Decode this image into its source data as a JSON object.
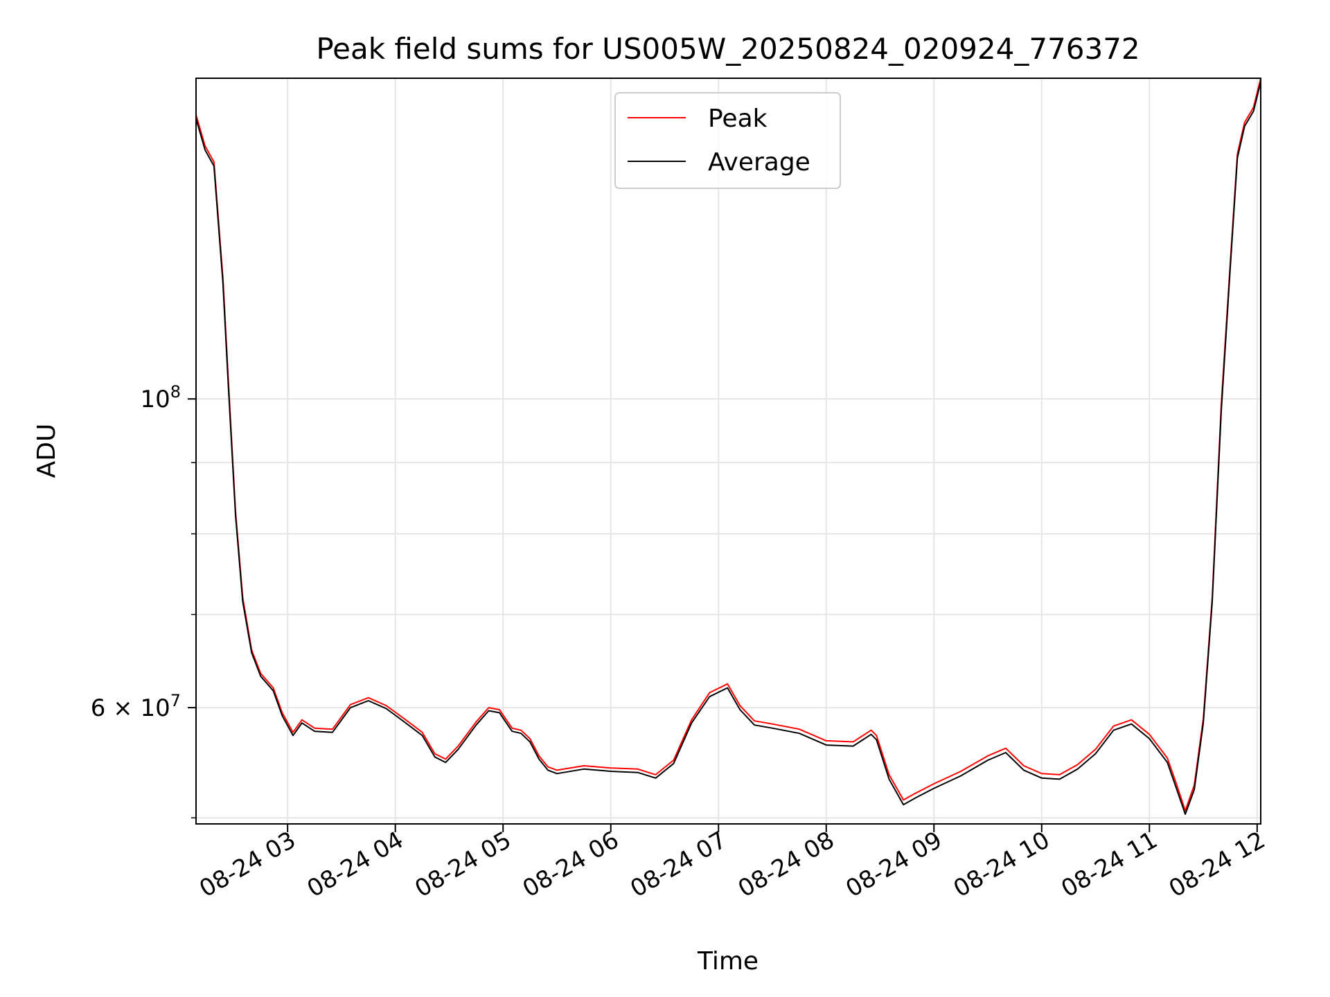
{
  "chart_data": {
    "type": "line",
    "title": "Peak field sums for US005W_20250824_020924_776372",
    "xlabel": "Time",
    "ylabel": "ADU",
    "y_scale": "log",
    "ylim": [
      49500000,
      170000000
    ],
    "xlim": [
      "2025-08-24 02:09",
      "2025-08-24 12:02"
    ],
    "x_ticks": [
      {
        "t": "2025-08-24 03:00",
        "label": "08-24 03"
      },
      {
        "t": "2025-08-24 04:00",
        "label": "08-24 04"
      },
      {
        "t": "2025-08-24 05:00",
        "label": "08-24 05"
      },
      {
        "t": "2025-08-24 06:00",
        "label": "08-24 06"
      },
      {
        "t": "2025-08-24 07:00",
        "label": "08-24 07"
      },
      {
        "t": "2025-08-24 08:00",
        "label": "08-24 08"
      },
      {
        "t": "2025-08-24 09:00",
        "label": "08-24 09"
      },
      {
        "t": "2025-08-24 10:00",
        "label": "08-24 10"
      },
      {
        "t": "2025-08-24 11:00",
        "label": "08-24 11"
      },
      {
        "t": "2025-08-24 12:00",
        "label": "08-24 12"
      }
    ],
    "y_major_ticks": [
      {
        "value": 100000000,
        "base": "10",
        "exp": "8"
      },
      {
        "value": 60000000,
        "mant": "6",
        "base": "10",
        "exp": "7"
      }
    ],
    "y_minor_ticks": [
      50000000,
      70000000,
      80000000,
      90000000
    ],
    "grid": true,
    "legend_position": "top-center",
    "series": [
      {
        "name": "Peak",
        "color": "#ff0000",
        "points": [
          [
            "2025-08-24 02:09",
            160000000
          ],
          [
            "2025-08-24 02:14",
            152000000
          ],
          [
            "2025-08-24 02:19",
            148000000
          ],
          [
            "2025-08-24 02:24",
            122000000
          ],
          [
            "2025-08-24 02:27",
            103000000
          ],
          [
            "2025-08-24 02:31",
            83000000
          ],
          [
            "2025-08-24 02:35",
            72000000
          ],
          [
            "2025-08-24 02:40",
            66000000
          ],
          [
            "2025-08-24 02:45",
            63500000
          ],
          [
            "2025-08-24 02:52",
            62000000
          ],
          [
            "2025-08-24 02:57",
            59500000
          ],
          [
            "2025-08-24 03:03",
            57600000
          ],
          [
            "2025-08-24 03:08",
            58800000
          ],
          [
            "2025-08-24 03:15",
            58000000
          ],
          [
            "2025-08-24 03:25",
            57900000
          ],
          [
            "2025-08-24 03:35",
            60300000
          ],
          [
            "2025-08-24 03:45",
            61000000
          ],
          [
            "2025-08-24 03:55",
            60200000
          ],
          [
            "2025-08-24 04:05",
            58900000
          ],
          [
            "2025-08-24 04:15",
            57600000
          ],
          [
            "2025-08-24 04:22",
            55600000
          ],
          [
            "2025-08-24 04:28",
            55100000
          ],
          [
            "2025-08-24 04:35",
            56300000
          ],
          [
            "2025-08-24 04:45",
            58600000
          ],
          [
            "2025-08-24 04:52",
            60000000
          ],
          [
            "2025-08-24 04:58",
            59800000
          ],
          [
            "2025-08-24 05:05",
            58000000
          ],
          [
            "2025-08-24 05:10",
            57800000
          ],
          [
            "2025-08-24 05:15",
            57000000
          ],
          [
            "2025-08-24 05:20",
            55400000
          ],
          [
            "2025-08-24 05:25",
            54400000
          ],
          [
            "2025-08-24 05:30",
            54100000
          ],
          [
            "2025-08-24 05:45",
            54500000
          ],
          [
            "2025-08-24 06:00",
            54300000
          ],
          [
            "2025-08-24 06:15",
            54200000
          ],
          [
            "2025-08-24 06:25",
            53700000
          ],
          [
            "2025-08-24 06:35",
            55000000
          ],
          [
            "2025-08-24 06:45",
            58800000
          ],
          [
            "2025-08-24 06:55",
            61500000
          ],
          [
            "2025-08-24 07:05",
            62400000
          ],
          [
            "2025-08-24 07:12",
            60200000
          ],
          [
            "2025-08-24 07:20",
            58700000
          ],
          [
            "2025-08-24 07:30",
            58400000
          ],
          [
            "2025-08-24 07:45",
            57900000
          ],
          [
            "2025-08-24 08:00",
            56800000
          ],
          [
            "2025-08-24 08:15",
            56700000
          ],
          [
            "2025-08-24 08:25",
            57800000
          ],
          [
            "2025-08-24 08:28",
            57300000
          ],
          [
            "2025-08-24 08:35",
            53700000
          ],
          [
            "2025-08-24 08:43",
            51500000
          ],
          [
            "2025-08-24 08:50",
            52100000
          ],
          [
            "2025-08-24 09:00",
            52900000
          ],
          [
            "2025-08-24 09:15",
            54000000
          ],
          [
            "2025-08-24 09:30",
            55400000
          ],
          [
            "2025-08-24 09:40",
            56100000
          ],
          [
            "2025-08-24 09:50",
            54500000
          ],
          [
            "2025-08-24 10:00",
            53800000
          ],
          [
            "2025-08-24 10:10",
            53700000
          ],
          [
            "2025-08-24 10:20",
            54600000
          ],
          [
            "2025-08-24 10:30",
            56000000
          ],
          [
            "2025-08-24 10:40",
            58200000
          ],
          [
            "2025-08-24 10:50",
            58800000
          ],
          [
            "2025-08-24 11:00",
            57400000
          ],
          [
            "2025-08-24 11:10",
            55200000
          ],
          [
            "2025-08-24 11:15",
            52900000
          ],
          [
            "2025-08-24 11:20",
            50600000
          ],
          [
            "2025-08-24 11:25",
            52800000
          ],
          [
            "2025-08-24 11:30",
            58900000
          ],
          [
            "2025-08-24 11:35",
            72000000
          ],
          [
            "2025-08-24 11:40",
            99000000
          ],
          [
            "2025-08-24 11:45",
            125000000
          ],
          [
            "2025-08-24 11:49",
            150000000
          ],
          [
            "2025-08-24 11:53",
            158000000
          ],
          [
            "2025-08-24 11:58",
            162000000
          ],
          [
            "2025-08-24 12:02",
            170000000
          ]
        ]
      },
      {
        "name": "Average",
        "color": "#000000",
        "points": [
          [
            "2025-08-24 02:09",
            159000000
          ],
          [
            "2025-08-24 02:14",
            151000000
          ],
          [
            "2025-08-24 02:19",
            147000000
          ],
          [
            "2025-08-24 02:24",
            121000000
          ],
          [
            "2025-08-24 02:27",
            102000000
          ],
          [
            "2025-08-24 02:31",
            82500000
          ],
          [
            "2025-08-24 02:35",
            71500000
          ],
          [
            "2025-08-24 02:40",
            65700000
          ],
          [
            "2025-08-24 02:45",
            63200000
          ],
          [
            "2025-08-24 02:52",
            61700000
          ],
          [
            "2025-08-24 02:57",
            59200000
          ],
          [
            "2025-08-24 03:03",
            57300000
          ],
          [
            "2025-08-24 03:08",
            58500000
          ],
          [
            "2025-08-24 03:15",
            57700000
          ],
          [
            "2025-08-24 03:25",
            57600000
          ],
          [
            "2025-08-24 03:35",
            60000000
          ],
          [
            "2025-08-24 03:45",
            60700000
          ],
          [
            "2025-08-24 03:55",
            59900000
          ],
          [
            "2025-08-24 04:05",
            58600000
          ],
          [
            "2025-08-24 04:15",
            57300000
          ],
          [
            "2025-08-24 04:22",
            55300000
          ],
          [
            "2025-08-24 04:28",
            54800000
          ],
          [
            "2025-08-24 04:35",
            56000000
          ],
          [
            "2025-08-24 04:45",
            58300000
          ],
          [
            "2025-08-24 04:52",
            59700000
          ],
          [
            "2025-08-24 04:58",
            59500000
          ],
          [
            "2025-08-24 05:05",
            57700000
          ],
          [
            "2025-08-24 05:10",
            57500000
          ],
          [
            "2025-08-24 05:15",
            56700000
          ],
          [
            "2025-08-24 05:20",
            55100000
          ],
          [
            "2025-08-24 05:25",
            54100000
          ],
          [
            "2025-08-24 05:30",
            53800000
          ],
          [
            "2025-08-24 05:45",
            54200000
          ],
          [
            "2025-08-24 06:00",
            54000000
          ],
          [
            "2025-08-24 06:15",
            53900000
          ],
          [
            "2025-08-24 06:25",
            53400000
          ],
          [
            "2025-08-24 06:35",
            54700000
          ],
          [
            "2025-08-24 06:45",
            58500000
          ],
          [
            "2025-08-24 06:55",
            61100000
          ],
          [
            "2025-08-24 07:05",
            62000000
          ],
          [
            "2025-08-24 07:12",
            59800000
          ],
          [
            "2025-08-24 07:20",
            58300000
          ],
          [
            "2025-08-24 07:30",
            58000000
          ],
          [
            "2025-08-24 07:45",
            57500000
          ],
          [
            "2025-08-24 08:00",
            56400000
          ],
          [
            "2025-08-24 08:15",
            56300000
          ],
          [
            "2025-08-24 08:25",
            57400000
          ],
          [
            "2025-08-24 08:28",
            56900000
          ],
          [
            "2025-08-24 08:35",
            53300000
          ],
          [
            "2025-08-24 08:43",
            51100000
          ],
          [
            "2025-08-24 08:50",
            51700000
          ],
          [
            "2025-08-24 09:00",
            52500000
          ],
          [
            "2025-08-24 09:15",
            53600000
          ],
          [
            "2025-08-24 09:30",
            55000000
          ],
          [
            "2025-08-24 09:40",
            55700000
          ],
          [
            "2025-08-24 09:50",
            54100000
          ],
          [
            "2025-08-24 10:00",
            53400000
          ],
          [
            "2025-08-24 10:10",
            53300000
          ],
          [
            "2025-08-24 10:20",
            54200000
          ],
          [
            "2025-08-24 10:30",
            55600000
          ],
          [
            "2025-08-24 10:40",
            57800000
          ],
          [
            "2025-08-24 10:50",
            58400000
          ],
          [
            "2025-08-24 11:00",
            57000000
          ],
          [
            "2025-08-24 11:10",
            54800000
          ],
          [
            "2025-08-24 11:15",
            52500000
          ],
          [
            "2025-08-24 11:20",
            50300000
          ],
          [
            "2025-08-24 11:25",
            52400000
          ],
          [
            "2025-08-24 11:30",
            58500000
          ],
          [
            "2025-08-24 11:35",
            71500000
          ],
          [
            "2025-08-24 11:40",
            98000000
          ],
          [
            "2025-08-24 11:45",
            124000000
          ],
          [
            "2025-08-24 11:49",
            149000000
          ],
          [
            "2025-08-24 11:53",
            157000000
          ],
          [
            "2025-08-24 11:58",
            161000000
          ],
          [
            "2025-08-24 12:02",
            169000000
          ]
        ]
      }
    ]
  }
}
